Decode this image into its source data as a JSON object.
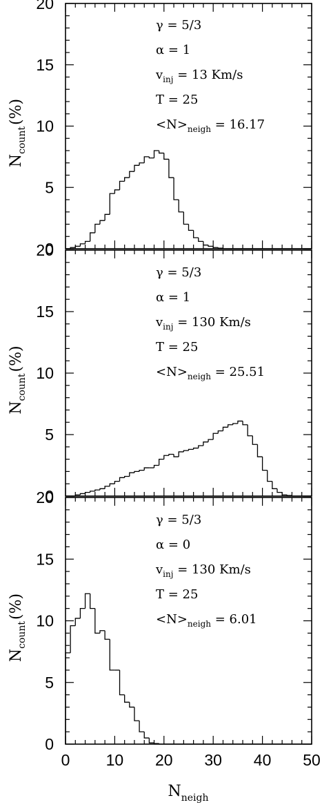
{
  "chart_data": [
    {
      "type": "histogram",
      "xlim": [
        0,
        50
      ],
      "ylim": [
        0,
        20
      ],
      "xticks": [
        "0",
        "10",
        "20",
        "30",
        "40",
        "50"
      ],
      "yticks": [
        "0",
        "5",
        "10",
        "15",
        "20"
      ],
      "show_xtick_labels": false,
      "ylabel": {
        "main": "N",
        "sub": "count",
        "unit": "(%)"
      },
      "xlabel": {
        "main": "",
        "sub": ""
      },
      "annotations": [
        {
          "name": "gamma",
          "sym": "γ",
          "sub": "",
          "eq": "=",
          "value": "5/3"
        },
        {
          "name": "alpha",
          "sym": "α",
          "sub": "",
          "eq": "=",
          "value": "1"
        },
        {
          "name": "vinj",
          "sym": "v",
          "sub": "inj",
          "eq": "=",
          "value": "13 Km/s"
        },
        {
          "name": "temperature",
          "sym": "T",
          "sub": "",
          "eq": "=",
          "value": "25"
        },
        {
          "name": "mean-neigh",
          "sym": "<N>",
          "sub": "neigh",
          "eq": "=",
          "value": "16.17"
        }
      ],
      "bin_width": 1,
      "series": [
        {
          "x_start": 0,
          "values": [
            0,
            0.1,
            0.2,
            0.4,
            0.6,
            1.3,
            2.0,
            2.3,
            2.8,
            4.5,
            4.8,
            5.5,
            5.8,
            6.3,
            6.8,
            7.0,
            7.5,
            7.4,
            8.0,
            7.8,
            7.3,
            5.8,
            4.0,
            3.0,
            2.0,
            1.5,
            0.9,
            0.6,
            0.3,
            0.2,
            0.1,
            0.05,
            0,
            0,
            0,
            0,
            0,
            0,
            0,
            0,
            0,
            0,
            0,
            0,
            0,
            0,
            0,
            0,
            0,
            0
          ]
        }
      ]
    },
    {
      "type": "histogram",
      "xlim": [
        0,
        50
      ],
      "ylim": [
        0,
        20
      ],
      "xticks": [
        "0",
        "10",
        "20",
        "30",
        "40",
        "50"
      ],
      "yticks": [
        "0",
        "5",
        "10",
        "15",
        "20"
      ],
      "show_xtick_labels": false,
      "ylabel": {
        "main": "N",
        "sub": "count",
        "unit": "(%)"
      },
      "xlabel": {
        "main": "",
        "sub": ""
      },
      "annotations": [
        {
          "name": "gamma",
          "sym": "γ",
          "sub": "",
          "eq": "=",
          "value": "5/3"
        },
        {
          "name": "alpha",
          "sym": "α",
          "sub": "",
          "eq": "=",
          "value": "1"
        },
        {
          "name": "vinj",
          "sym": "v",
          "sub": "inj",
          "eq": "=",
          "value": "130 Km/s"
        },
        {
          "name": "temperature",
          "sym": "T",
          "sub": "",
          "eq": "=",
          "value": "25"
        },
        {
          "name": "mean-neigh",
          "sym": "<N>",
          "sub": "neigh",
          "eq": "=",
          "value": "25.51"
        }
      ],
      "bin_width": 1,
      "series": [
        {
          "x_start": 0,
          "values": [
            0,
            0,
            0.1,
            0.2,
            0.3,
            0.4,
            0.5,
            0.6,
            0.8,
            1.0,
            1.2,
            1.5,
            1.6,
            1.9,
            2.0,
            2.1,
            2.3,
            2.3,
            2.5,
            3.0,
            3.3,
            3.4,
            3.2,
            3.6,
            3.7,
            3.8,
            3.9,
            4.1,
            4.4,
            4.6,
            5.1,
            5.3,
            5.6,
            5.8,
            5.9,
            6.1,
            5.8,
            4.9,
            4.2,
            3.2,
            2.1,
            1.2,
            0.6,
            0.3,
            0.1,
            0.05,
            0,
            0,
            0,
            0
          ]
        }
      ]
    },
    {
      "type": "histogram",
      "xlim": [
        0,
        50
      ],
      "ylim": [
        0,
        20
      ],
      "xticks": [
        "0",
        "10",
        "20",
        "30",
        "40",
        "50"
      ],
      "yticks": [
        "0",
        "5",
        "10",
        "15",
        "20"
      ],
      "show_xtick_labels": true,
      "ylabel": {
        "main": "N",
        "sub": "count",
        "unit": "(%)"
      },
      "xlabel": {
        "main": "N",
        "sub": "neigh"
      },
      "annotations": [
        {
          "name": "gamma",
          "sym": "γ",
          "sub": "",
          "eq": "=",
          "value": "5/3"
        },
        {
          "name": "alpha",
          "sym": "α",
          "sub": "",
          "eq": "=",
          "value": "0"
        },
        {
          "name": "vinj",
          "sym": "v",
          "sub": "inj",
          "eq": "=",
          "value": "130 Km/s"
        },
        {
          "name": "temperature",
          "sym": "T",
          "sub": "",
          "eq": "=",
          "value": "25"
        },
        {
          "name": "mean-neigh",
          "sym": "<N>",
          "sub": "neigh",
          "eq": "=",
          "value": "6.01"
        }
      ],
      "bin_width": 1,
      "series": [
        {
          "x_start": 0,
          "values": [
            7.4,
            9.6,
            10.2,
            11.0,
            12.2,
            11.0,
            9.0,
            9.2,
            8.5,
            6.0,
            6.0,
            4.0,
            3.4,
            3.0,
            1.9,
            1.0,
            0.5,
            0.1,
            0.05,
            0,
            0,
            0,
            0,
            0,
            0,
            0,
            0,
            0,
            0,
            0,
            0,
            0,
            0,
            0,
            0,
            0,
            0,
            0,
            0,
            0,
            0,
            0,
            0,
            0,
            0,
            0,
            0,
            0,
            0,
            0
          ]
        }
      ]
    }
  ]
}
